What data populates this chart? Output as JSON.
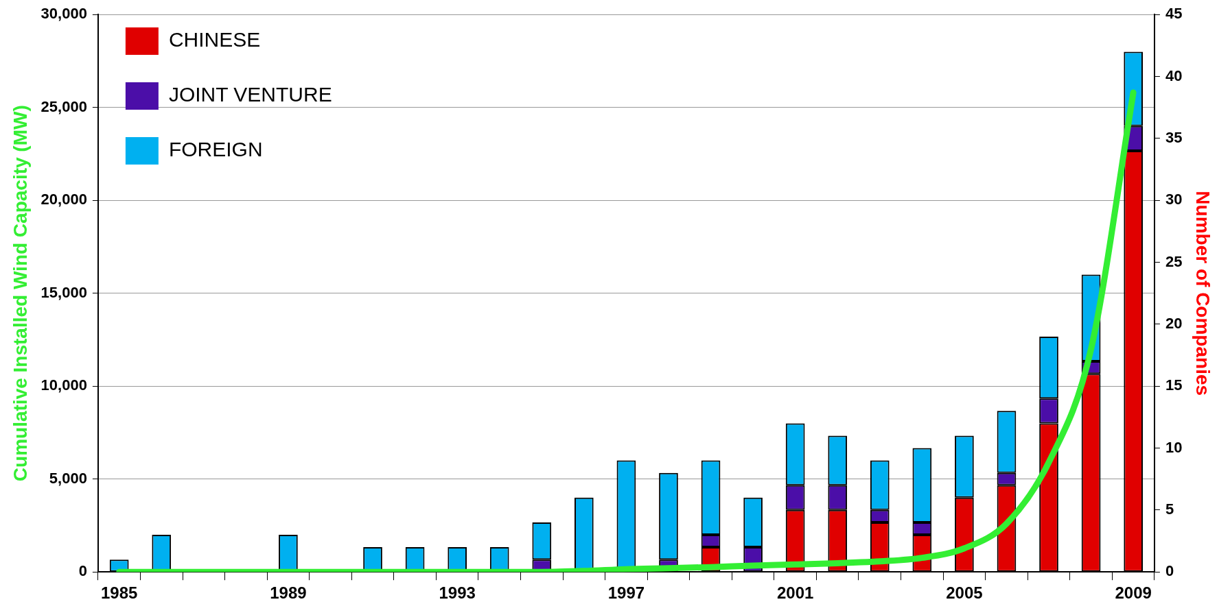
{
  "chart_data": {
    "type": "bar",
    "stacked": true,
    "xlabel": null,
    "ylabel": "Cumulative Installed Wind Capacity (MW)",
    "y2label": "Number of Companies",
    "categories": [
      "1985",
      null,
      null,
      null,
      "1989",
      null,
      null,
      null,
      "1993",
      null,
      null,
      null,
      "1997",
      null,
      null,
      null,
      "2001",
      null,
      null,
      null,
      "2005",
      null,
      null,
      null,
      "2009"
    ],
    "series": [
      {
        "name": "CHINESE",
        "color": "#e00000",
        "axis": "y2",
        "values": [
          0,
          0,
          0,
          0,
          0,
          0,
          0,
          0,
          0,
          0,
          0,
          0,
          0,
          0,
          2,
          0,
          5,
          5,
          4,
          3,
          6,
          7,
          12,
          16,
          34
        ]
      },
      {
        "name": "JOINT VENTURE",
        "color": "#4b0ea8",
        "axis": "y2",
        "values": [
          0,
          0,
          0,
          0,
          0,
          0,
          0,
          0,
          0,
          0,
          1,
          0,
          0,
          1,
          1,
          2,
          2,
          2,
          1,
          1,
          0,
          1,
          2,
          1,
          2
        ]
      },
      {
        "name": "FOREIGN",
        "color": "#00b0f0",
        "axis": "y2",
        "values": [
          1,
          3,
          0,
          0,
          3,
          0,
          2,
          2,
          2,
          2,
          3,
          6,
          9,
          7,
          6,
          4,
          5,
          4,
          4,
          6,
          5,
          5,
          5,
          7,
          6
        ]
      },
      {
        "type": "line",
        "color": "#33ee33",
        "axis": "y",
        "values": [
          0,
          0,
          0,
          0,
          0,
          0,
          0,
          0,
          0,
          0,
          0,
          50,
          150,
          200,
          260,
          340,
          400,
          470,
          570,
          760,
          1270,
          2600,
          5900,
          12000,
          25800
        ]
      }
    ],
    "ylim": [
      0,
      30000
    ],
    "yticks": [
      {
        "value": 0,
        "label": "0"
      },
      {
        "value": 5000,
        "label": "5,000"
      },
      {
        "value": 10000,
        "label": "10,000"
      },
      {
        "value": 15000,
        "label": "15,000"
      },
      {
        "value": 20000,
        "label": "20,000"
      },
      {
        "value": 25000,
        "label": "25,000"
      },
      {
        "value": 30000,
        "label": "30,000"
      }
    ],
    "y2lim": [
      0,
      45
    ],
    "y2ticks": [
      0,
      5,
      10,
      15,
      20,
      25,
      30,
      35,
      40,
      45
    ],
    "grid": "y",
    "legend": "top left"
  }
}
